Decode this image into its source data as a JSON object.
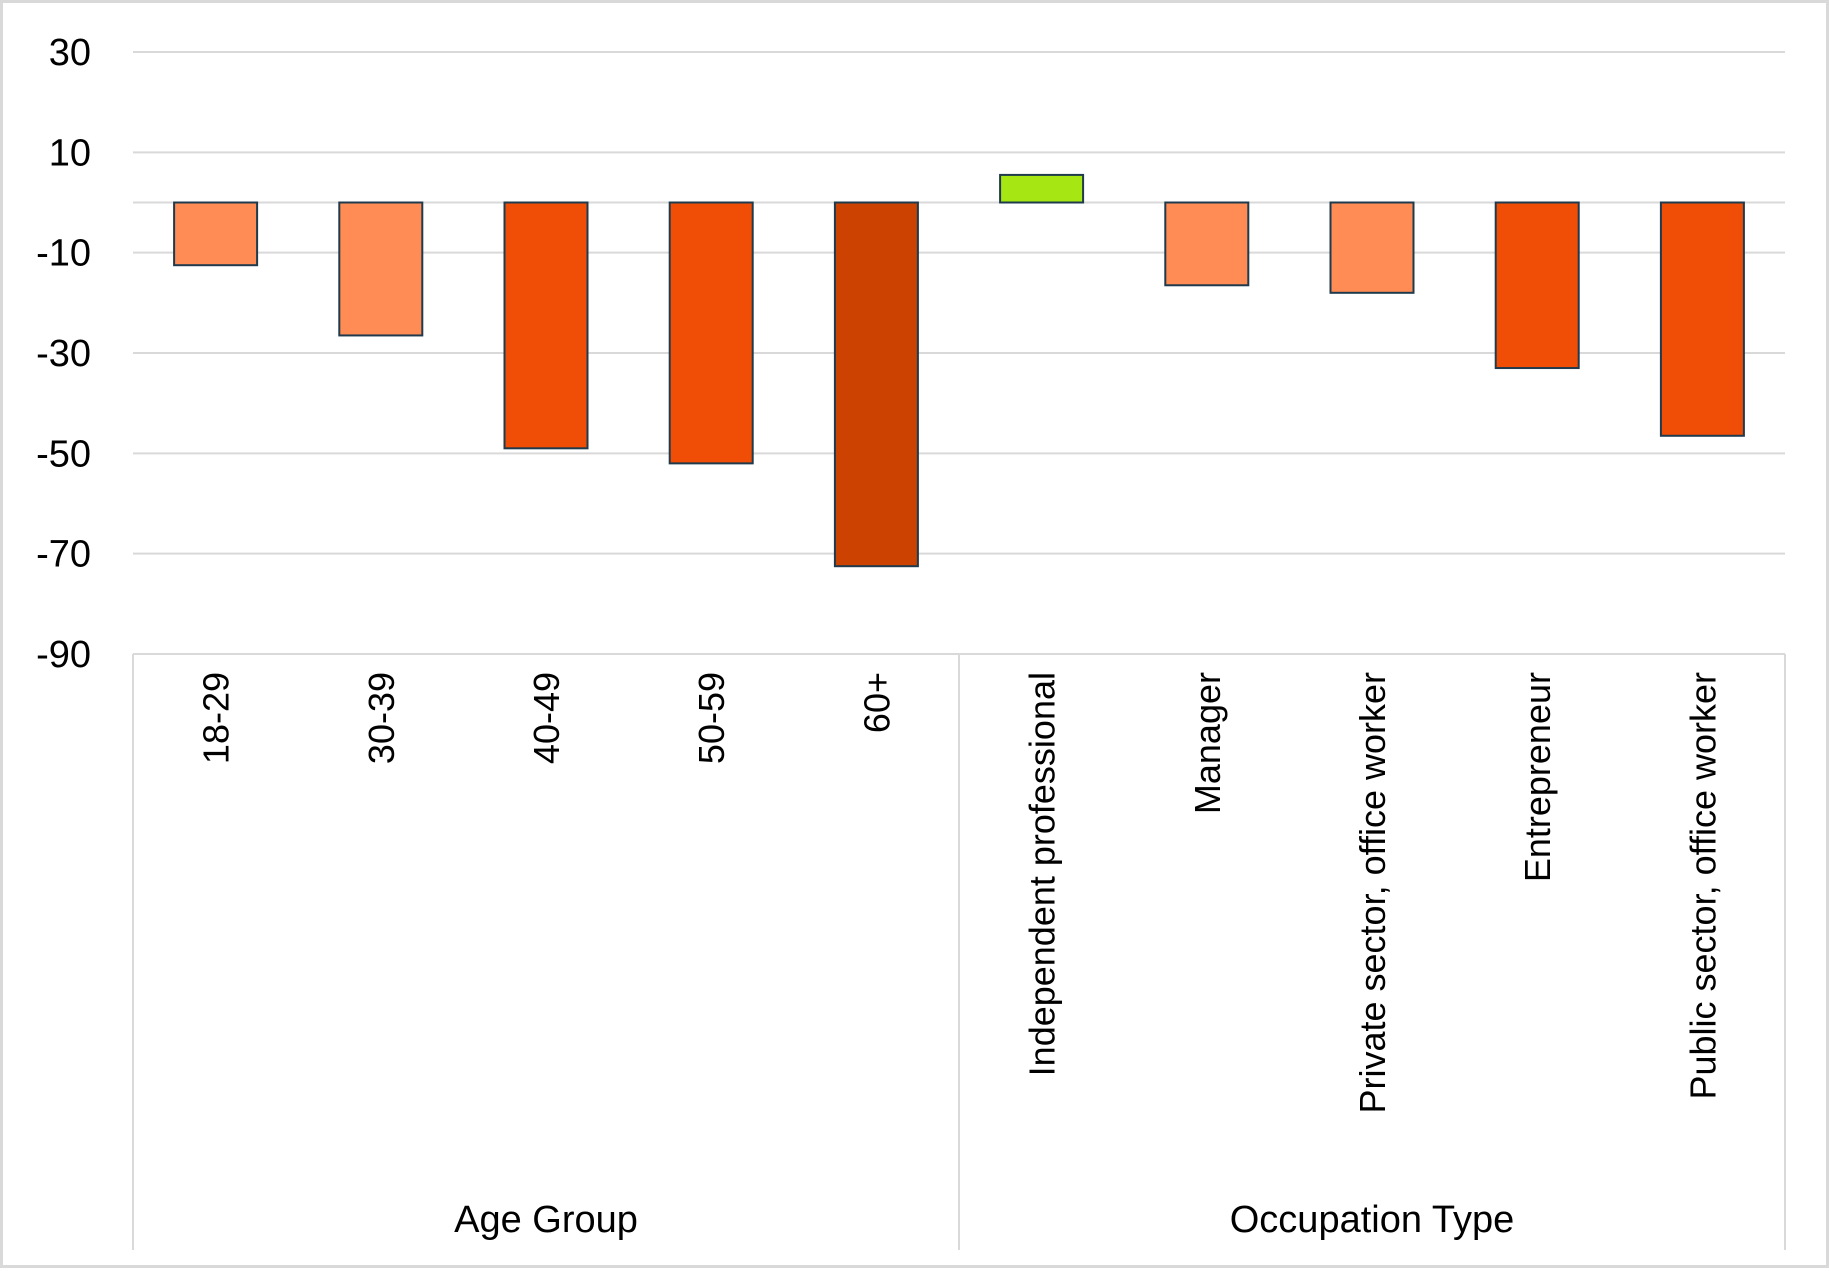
{
  "chart_data": {
    "type": "bar",
    "title": "",
    "xlabel": "",
    "ylabel": "",
    "ylim": [
      -90,
      30
    ],
    "yticks": [
      30,
      10,
      -10,
      -30,
      -50,
      -70,
      -90
    ],
    "grid": true,
    "legend": "none",
    "groups": [
      {
        "label": "Age Group",
        "start": 0,
        "end": 4
      },
      {
        "label": "Occupation Type",
        "start": 5,
        "end": 9
      }
    ],
    "categories": [
      "18-29",
      "30-39",
      "40-49",
      "50-59",
      "60+",
      "Independent professional",
      "Manager",
      "Private sector, office worker",
      "Entrepreneur",
      "Public sector, office worker"
    ],
    "values": [
      -12.5,
      -26.5,
      -49,
      -52,
      -72.5,
      5.5,
      -16.5,
      -18,
      -33,
      -46.5
    ],
    "bar_colors": [
      "#ff8c55",
      "#ff8c55",
      "#f04e06",
      "#f04e06",
      "#cc4200",
      "#a6e612",
      "#ff8c55",
      "#ff8c55",
      "#f04e06",
      "#f04e06"
    ],
    "outline_color": "#1e3a4c"
  }
}
